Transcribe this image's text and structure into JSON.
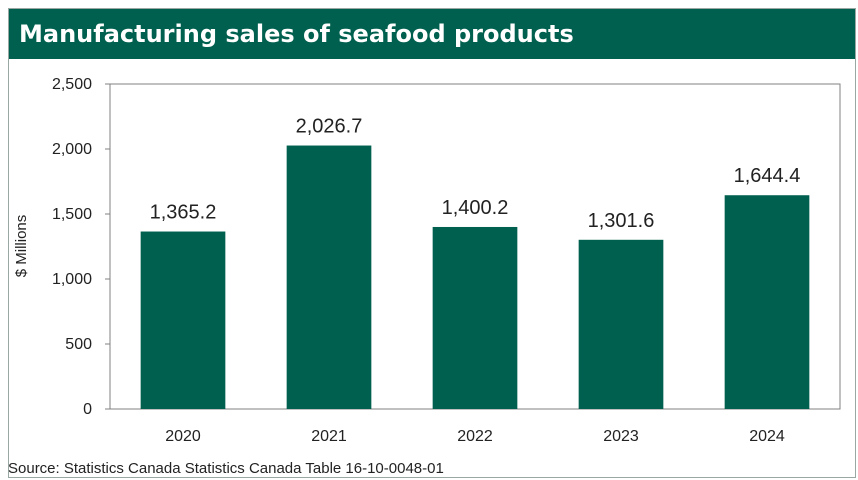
{
  "chart_data": {
    "type": "bar",
    "title": "Manufacturing sales of seafood products",
    "ylabel": "$ Millions",
    "xlabel": "",
    "categories": [
      "2020",
      "2021",
      "2022",
      "2023",
      "2024"
    ],
    "values": [
      1365.2,
      2026.7,
      1400.2,
      1301.6,
      1644.4
    ],
    "value_labels": [
      "1,365.2",
      "2,026.7",
      "1,400.2",
      "1,301.6",
      "1,644.4"
    ],
    "ylim": [
      0,
      2500
    ],
    "yticks": [
      0,
      500,
      1000,
      1500,
      2000,
      2500
    ],
    "ytick_labels": [
      "0",
      "500",
      "1,000",
      "1,500",
      "2,000",
      "2,500"
    ],
    "grid": false,
    "legend": "none",
    "colors": {
      "bar": "#00604f",
      "title_bg": "#00604f",
      "title_text": "#ffffff"
    }
  },
  "source": "Source: Statistics Canada Statistics Canada Table 16-10-0048-01"
}
